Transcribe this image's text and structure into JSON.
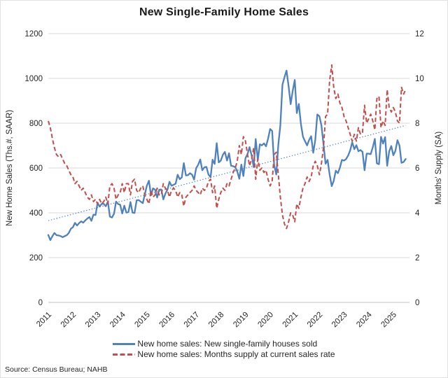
{
  "title": "New Single-Family Home Sales",
  "source_note": "Source: Census Bureau; NAHB",
  "colors": {
    "sales_line": "#4f81bd",
    "supply_line": "#c0504d",
    "trendline": "#4f81bd",
    "gridline": "#d9d9d9",
    "axis_line": "#bfbfbf",
    "text": "#262626"
  },
  "legend": [
    {
      "label": "New home sales: New single-family houses sold",
      "style": "solid",
      "color": "#4f81bd"
    },
    {
      "label": "New home sales: Months supply at current sales rate",
      "style": "dashed",
      "color": "#c0504d"
    }
  ],
  "chart_data": {
    "type": "line",
    "title": "New Single-Family Home Sales",
    "x_frequency": "monthly",
    "x_range": [
      "2011-01",
      "2025-07"
    ],
    "x_tick_labels": [
      "2011",
      "2012",
      "2013",
      "2014",
      "2015",
      "2016",
      "2017",
      "2018",
      "2019",
      "2020",
      "2021",
      "2022",
      "2023",
      "2024",
      "2025"
    ],
    "grid": "horizontal",
    "legend_position": "bottom",
    "left_axis": {
      "label": "New Home Sales (Ths.#, SAAR)",
      "min": 0,
      "max": 1200,
      "step": 200,
      "ticks": [
        "0",
        "200",
        "400",
        "600",
        "800",
        "1000",
        "1200"
      ]
    },
    "right_axis": {
      "label": "Months' Supply (SA)",
      "min": 0,
      "max": 12,
      "step": 2,
      "ticks": [
        "0",
        "2",
        "4",
        "6",
        "8",
        "10",
        "12"
      ]
    },
    "series": [
      {
        "name": "New home sales: New single-family houses sold",
        "axis": "left",
        "style": "solid",
        "color": "#4f81bd",
        "values": [
          301,
          278,
          296,
          310,
          300,
          299,
          296,
          291,
          296,
          300,
          310,
          329,
          336,
          355,
          343,
          354,
          362,
          356,
          366,
          374,
          381,
          364,
          392,
          390,
          444,
          428,
          440,
          440,
          429,
          450,
          383,
          379,
          396,
          450,
          439,
          436,
          397,
          432,
          401,
          403,
          448,
          401,
          399,
          456,
          457,
          450,
          443,
          482,
          521,
          543,
          478,
          509,
          503,
          468,
          503,
          504,
          460,
          485,
          503,
          538,
          521,
          525,
          530,
          570,
          550,
          558,
          622,
          567,
          568,
          577,
          570,
          548,
          599,
          615,
          638,
          590,
          603,
          605,
          571,
          559,
          637,
          618,
          711,
          625,
          633,
          659,
          672,
          633,
          666,
          610,
          608,
          604,
          585,
          552,
          615,
          564,
          644,
          662,
          693,
          656,
          604,
          729,
          635,
          706,
          701,
          710,
          697,
          730,
          774,
          765,
          612,
          571,
          704,
          791,
          972,
          1005,
          1035,
          965,
          885,
          943,
          993,
          845,
          886,
          796,
          740,
          720,
          701,
          725,
          742,
          668,
          725,
          839,
          831,
          790,
          707,
          619,
          636,
          571,
          519,
          543,
          588,
          577,
          602,
          636,
          633,
          640,
          656,
          679,
          715,
          684,
          702,
          675,
          680,
          672,
          590,
          664,
          664,
          662,
          693,
          730,
          621,
          617,
          739,
          709,
          738,
          610,
          674,
          698,
          657,
          676,
          724,
          700,
          623,
          627,
          640
        ]
      },
      {
        "name": "New home sales: Months supply at current sales rate",
        "axis": "right",
        "style": "dashed",
        "color": "#c0504d",
        "values": [
          8.1,
          7.8,
          7.3,
          6.9,
          6.6,
          6.5,
          6.6,
          6.4,
          6.2,
          6.1,
          5.9,
          5.7,
          5.6,
          5.3,
          5.4,
          5.2,
          5.0,
          5.1,
          4.9,
          4.7,
          4.6,
          4.8,
          4.5,
          4.6,
          4.4,
          4.6,
          4.4,
          4.5,
          4.7,
          4.4,
          5.2,
          5.3,
          5.1,
          4.6,
          4.8,
          4.9,
          5.3,
          4.9,
          5.3,
          5.3,
          4.8,
          5.4,
          5.5,
          5.0,
          4.9,
          5.1,
          5.2,
          4.8,
          4.6,
          4.4,
          5.0,
          4.7,
          4.8,
          5.1,
          4.8,
          4.8,
          5.3,
          5.1,
          5.0,
          4.7,
          5.0,
          5.1,
          5.0,
          4.7,
          4.9,
          4.8,
          4.3,
          4.7,
          4.8,
          4.9,
          5.0,
          5.2,
          5.0,
          4.9,
          4.8,
          5.1,
          5.0,
          5.1,
          5.4,
          5.5,
          4.9,
          5.2,
          4.2,
          4.6,
          4.9,
          5.1,
          5.0,
          5.3,
          5.2,
          5.5,
          5.8,
          6.0,
          6.3,
          7.0,
          6.6,
          7.4,
          7.2,
          6.6,
          6.1,
          6.4,
          6.9,
          5.5,
          6.4,
          5.9,
          6.0,
          5.8,
          5.9,
          5.5,
          5.2,
          5.4,
          6.6,
          6.7,
          5.7,
          4.7,
          3.9,
          3.5,
          3.3,
          3.6,
          4.0,
          3.9,
          3.6,
          4.4,
          4.2,
          4.7,
          5.1,
          5.3,
          5.6,
          5.4,
          5.6,
          6.1,
          6.3,
          6.1,
          5.7,
          6.2,
          6.9,
          8.3,
          8.4,
          9.9,
          10.6,
          9.6,
          9.1,
          9.3,
          8.9,
          8.7,
          8.3,
          8.1,
          7.8,
          7.5,
          7.2,
          7.5,
          7.2,
          7.8,
          7.5,
          7.6,
          8.8,
          8.0,
          8.2,
          8.4,
          8.1,
          7.7,
          9.1,
          9.2,
          7.8,
          8.1,
          7.9,
          9.5,
          8.7,
          8.5,
          8.7,
          8.5,
          8.1,
          8.0,
          9.6,
          9.3,
          9.5
        ]
      }
    ],
    "trendline": {
      "of_series": "New home sales: New single-family houses sold",
      "axis": "left",
      "style": "dotted",
      "start_value": 365,
      "end_value": 790
    }
  }
}
